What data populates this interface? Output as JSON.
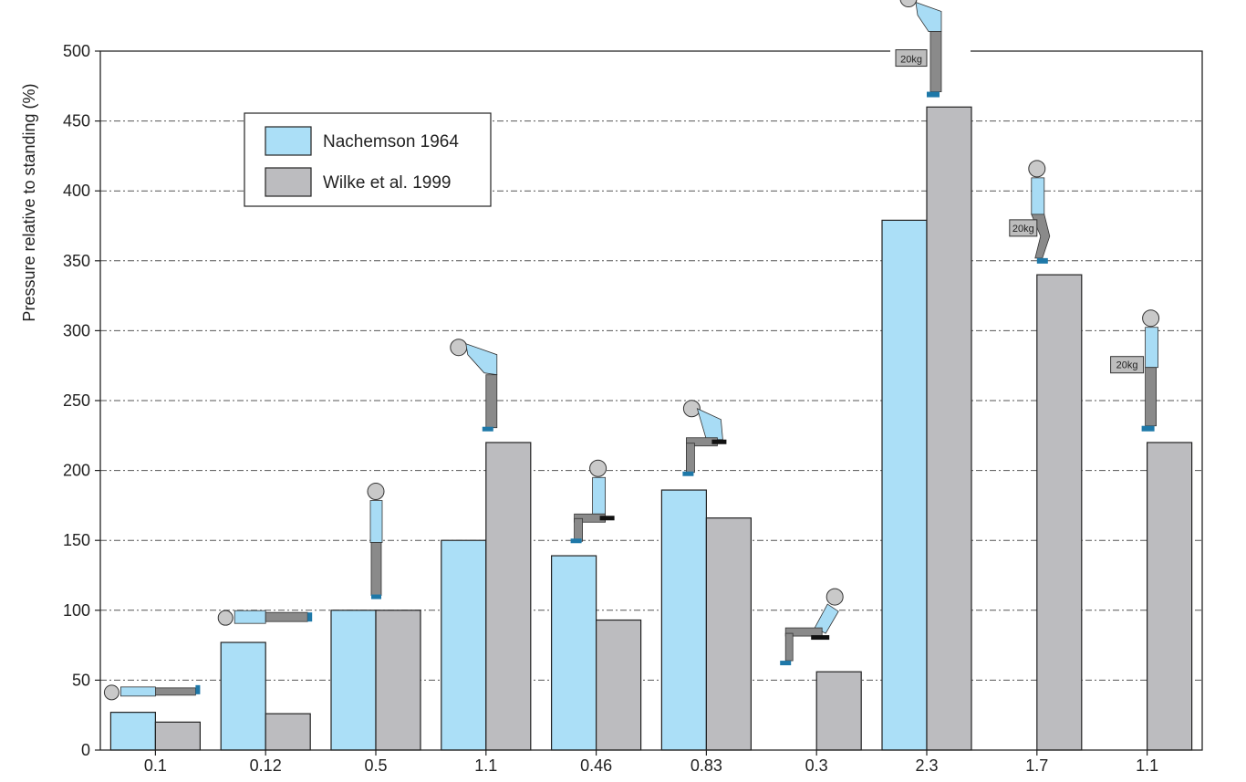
{
  "chart_data": {
    "type": "bar",
    "ylabel": "Pressure relative to standing (%)",
    "xlabel": "",
    "ylim": [
      0,
      500
    ],
    "yticks": [
      0,
      50,
      100,
      150,
      200,
      250,
      300,
      350,
      400,
      450,
      500
    ],
    "grid": true,
    "legend_position": "top-left",
    "categories": [
      "0.1",
      "0.12",
      "0.5",
      "1.1",
      "0.46",
      "0.83",
      "0.3",
      "2.3",
      "1.7",
      "1.1"
    ],
    "series": [
      {
        "name": "Nachemson 1964",
        "color": "#abdff7",
        "values": [
          27,
          77,
          100,
          150,
          139,
          186,
          null,
          379,
          null,
          null
        ]
      },
      {
        "name": "Wilke et al. 1999",
        "color": "#bcbcbf",
        "values": [
          20,
          26,
          100,
          220,
          93,
          166,
          56,
          460,
          340,
          220
        ]
      }
    ],
    "annotations": [
      {
        "category_index": 0,
        "figure": "lying supine",
        "value": 36
      },
      {
        "category_index": 1,
        "figure": "lying on side",
        "value": 88
      },
      {
        "category_index": 2,
        "figure": "standing",
        "value": 108
      },
      {
        "category_index": 3,
        "figure": "standing bent forward",
        "value": 228
      },
      {
        "category_index": 4,
        "figure": "sitting upright",
        "value": 148
      },
      {
        "category_index": 5,
        "figure": "sitting bent forward",
        "value": 196
      },
      {
        "category_index": 6,
        "figure": "sitting reclined",
        "value": 60
      },
      {
        "category_index": 7,
        "figure": "lifting weight bent forward",
        "value": 467,
        "weight_label": "20kg"
      },
      {
        "category_index": 8,
        "figure": "lifting weight with bent knees",
        "value": 348,
        "weight_label": "20kg"
      },
      {
        "category_index": 9,
        "figure": "holding weight close to body",
        "value": 228,
        "weight_label": "20kg"
      }
    ]
  }
}
